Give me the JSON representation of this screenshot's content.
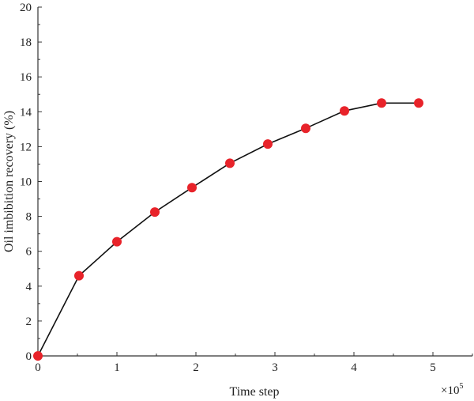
{
  "chart_data": {
    "type": "line",
    "title": "",
    "xlabel": "Time step",
    "ylabel": "Oil imbibition recovery (%)",
    "x_multiplier_label": "×10",
    "x_multiplier_exponent": "5",
    "xlim": [
      0,
      5.5
    ],
    "ylim": [
      0,
      20
    ],
    "x_ticks": [
      0,
      1,
      2,
      3,
      4,
      5
    ],
    "y_ticks": [
      0,
      2,
      4,
      6,
      8,
      10,
      12,
      14,
      16,
      18,
      20
    ],
    "x_tick_labels": [
      "0",
      "1",
      "2",
      "3",
      "4",
      "5"
    ],
    "y_tick_labels": [
      "0",
      "2",
      "4",
      "6",
      "8",
      "10",
      "12",
      "14",
      "16",
      "18",
      "20"
    ],
    "grid": false,
    "legend": "none",
    "series": [
      {
        "x": [
          0,
          0.52,
          1.0,
          1.48,
          1.95,
          2.43,
          2.91,
          3.39,
          3.88,
          4.35,
          4.82
        ],
        "y": [
          0,
          4.6,
          6.55,
          8.25,
          9.65,
          11.05,
          12.15,
          13.05,
          14.05,
          14.5,
          14.5
        ],
        "line_color": "#111111",
        "marker_color": "#e8232a"
      }
    ]
  }
}
